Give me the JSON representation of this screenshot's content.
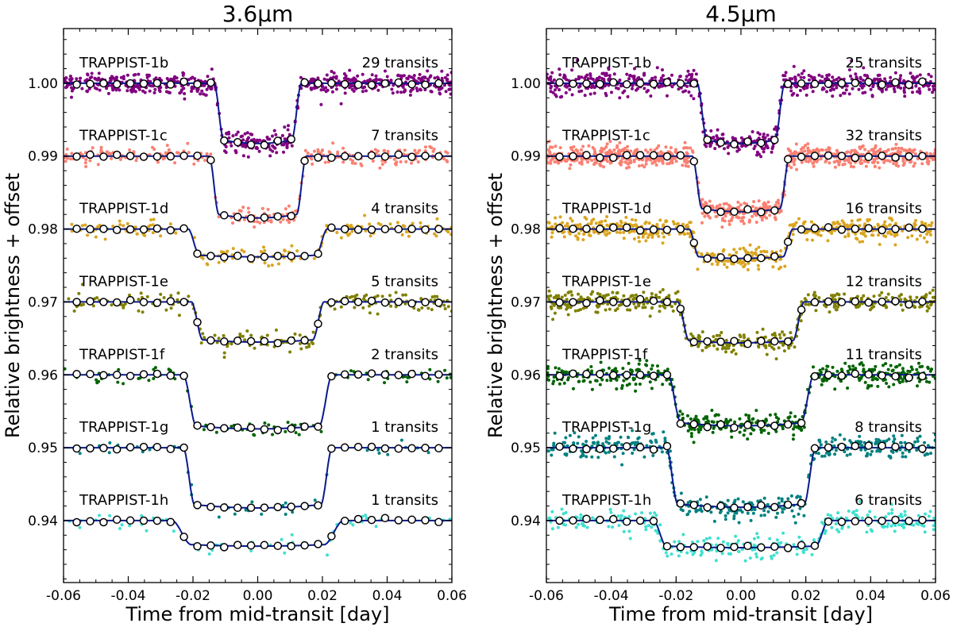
{
  "chart_data": [
    {
      "type": "scatter",
      "title": "3.6μm",
      "xlabel": "Time from mid-transit [day]",
      "ylabel": "Relative brightness + offset",
      "xlim": [
        -0.06,
        0.06
      ],
      "ylim": [
        0.9315,
        1.0075
      ],
      "xticks": [
        "-0.06",
        "-0.04",
        "-0.02",
        "0.00",
        "0.02",
        "0.04",
        "0.06"
      ],
      "yticks": [
        "0.94",
        "0.95",
        "0.96",
        "0.97",
        "0.98",
        "0.99",
        "1.00"
      ],
      "grid": false,
      "legend": "none",
      "model_color": "#0a1a8c",
      "series": [
        {
          "name": "TRAPPIST-1b",
          "transits_label": "29 transits",
          "color": "#800080",
          "offset": 1.0,
          "depth": 0.0078,
          "t1": 0.0105,
          "t2": 0.0135,
          "scatter": 0.0007,
          "n": 700
        },
        {
          "name": "TRAPPIST-1c",
          "transits_label": "7 transits",
          "color": "#fa8072",
          "offset": 0.99,
          "depth": 0.008,
          "t1": 0.012,
          "t2": 0.015,
          "scatter": 0.0006,
          "n": 260
        },
        {
          "name": "TRAPPIST-1d",
          "transits_label": "4 transits",
          "color": "#daa520",
          "offset": 0.98,
          "depth": 0.0036,
          "t1": 0.018,
          "t2": 0.0215,
          "scatter": 0.0006,
          "n": 170
        },
        {
          "name": "TRAPPIST-1e",
          "transits_label": "5 transits",
          "color": "#808000",
          "offset": 0.97,
          "depth": 0.0052,
          "t1": 0.017,
          "t2": 0.0205,
          "scatter": 0.0007,
          "n": 200
        },
        {
          "name": "TRAPPIST-1f",
          "transits_label": "2 transits",
          "color": "#006400",
          "offset": 0.96,
          "depth": 0.007,
          "t1": 0.019,
          "t2": 0.023,
          "scatter": 0.0006,
          "n": 90
        },
        {
          "name": "TRAPPIST-1g",
          "transits_label": "1 transits",
          "color": "#008080",
          "offset": 0.95,
          "depth": 0.0078,
          "t1": 0.0195,
          "t2": 0.023,
          "scatter": 0.0006,
          "n": 55
        },
        {
          "name": "TRAPPIST-1h",
          "transits_label": "1 transits",
          "color": "#40e0d0",
          "offset": 0.94,
          "depth": 0.0033,
          "t1": 0.0205,
          "t2": 0.0265,
          "scatter": 0.0006,
          "n": 55
        }
      ]
    },
    {
      "type": "scatter",
      "title": "4.5μm",
      "xlabel": "Time from mid-transit [day]",
      "ylabel": "Relative brightness + offset",
      "xlim": [
        -0.06,
        0.06
      ],
      "ylim": [
        0.9315,
        1.0075
      ],
      "xticks": [
        "-0.06",
        "-0.04",
        "-0.02",
        "0.00",
        "0.02",
        "0.04",
        "0.06"
      ],
      "yticks": [
        "0.94",
        "0.95",
        "0.96",
        "0.97",
        "0.98",
        "0.99",
        "1.00"
      ],
      "grid": false,
      "legend": "none",
      "model_color": "#0a1a8c",
      "series": [
        {
          "name": "TRAPPIST-1b",
          "transits_label": "25 transits",
          "color": "#800080",
          "offset": 1.0,
          "depth": 0.0078,
          "t1": 0.0105,
          "t2": 0.0135,
          "scatter": 0.0008,
          "n": 650
        },
        {
          "name": "TRAPPIST-1c",
          "transits_label": "32 transits",
          "color": "#fa8072",
          "offset": 0.99,
          "depth": 0.0072,
          "t1": 0.012,
          "t2": 0.015,
          "scatter": 0.0007,
          "n": 900
        },
        {
          "name": "TRAPPIST-1d",
          "transits_label": "16 transits",
          "color": "#daa520",
          "offset": 0.98,
          "depth": 0.0038,
          "t1": 0.013,
          "t2": 0.016,
          "scatter": 0.0007,
          "n": 550
        },
        {
          "name": "TRAPPIST-1e",
          "transits_label": "12 transits",
          "color": "#808000",
          "offset": 0.97,
          "depth": 0.0053,
          "t1": 0.016,
          "t2": 0.0195,
          "scatter": 0.0007,
          "n": 500
        },
        {
          "name": "TRAPPIST-1f",
          "transits_label": "11 transits",
          "color": "#006400",
          "offset": 0.96,
          "depth": 0.0066,
          "t1": 0.0185,
          "t2": 0.0225,
          "scatter": 0.0008,
          "n": 480
        },
        {
          "name": "TRAPPIST-1g",
          "transits_label": "8 transits",
          "color": "#008080",
          "offset": 0.95,
          "depth": 0.0077,
          "t1": 0.0195,
          "t2": 0.023,
          "scatter": 0.0008,
          "n": 400
        },
        {
          "name": "TRAPPIST-1h",
          "transits_label": "6 transits",
          "color": "#40e0d0",
          "offset": 0.94,
          "depth": 0.0035,
          "t1": 0.023,
          "t2": 0.027,
          "scatter": 0.0008,
          "n": 300
        }
      ]
    }
  ]
}
